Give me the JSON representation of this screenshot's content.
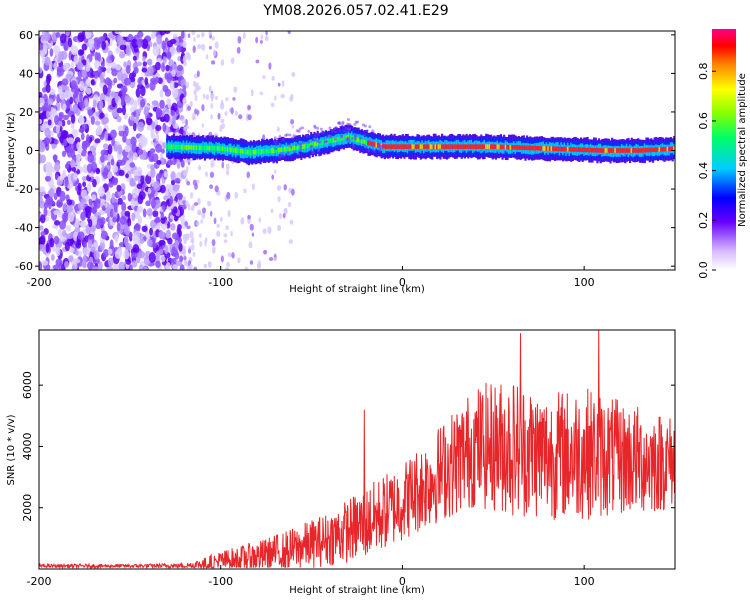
{
  "chart_data": [
    {
      "type": "heatmap",
      "title": "YM08.2026.057.02.41.E29",
      "xlabel": "Height of straight line (km)",
      "ylabel": "Frequency (Hz)",
      "xlim": [
        -200,
        150
      ],
      "ylim": [
        -62,
        62
      ],
      "xticks": [
        -200,
        -100,
        0,
        100
      ],
      "yticks": [
        -60,
        -40,
        -20,
        0,
        20,
        40,
        60
      ],
      "colorbar": {
        "label": "Normalized spectral amplitude",
        "range": [
          0.0,
          0.97
        ],
        "ticks": [
          0.0,
          0.2,
          0.4,
          0.6,
          0.8
        ]
      },
      "noise_region_x": [
        -200,
        -120
      ],
      "signal_band": {
        "x_start": -130,
        "x_end": 150,
        "center_frequency_hz": [
          [
            -130,
            2
          ],
          [
            -100,
            1
          ],
          [
            -85,
            -1
          ],
          [
            -70,
            0
          ],
          [
            -55,
            2
          ],
          [
            -40,
            5
          ],
          [
            -30,
            7
          ],
          [
            -20,
            4
          ],
          [
            -10,
            2
          ],
          [
            0,
            2
          ],
          [
            20,
            2
          ],
          [
            50,
            2
          ],
          [
            80,
            1
          ],
          [
            110,
            0
          ],
          [
            130,
            0
          ],
          [
            150,
            1
          ]
        ],
        "peak_amplitude_from_x": -20
      }
    },
    {
      "type": "line",
      "xlabel": "Height of straight line (km)",
      "ylabel": "SNR (10 * v/v)",
      "xlim": [
        -200,
        150
      ],
      "ylim": [
        0,
        7800
      ],
      "xticks": [
        -200,
        -100,
        0,
        100
      ],
      "yticks": [
        2000,
        4000,
        6000
      ],
      "series": [
        {
          "name": "SNR",
          "color": "#e8262a",
          "envelope": {
            "x": [
              -200,
              -150,
              -120,
              -110,
              -100,
              -80,
              -60,
              -40,
              -20,
              0,
              20,
              40,
              60,
              80,
              100,
              120,
              140,
              150
            ],
            "base": [
              100,
              100,
              110,
              150,
              250,
              400,
              650,
              1000,
              1500,
              2200,
              3100,
              4000,
              4000,
              3700,
              3800,
              3600,
              3500,
              3500
            ],
            "amplitude": [
              60,
              60,
              80,
              200,
              350,
              500,
              700,
              900,
              1200,
              1300,
              1600,
              2000,
              2300,
              2100,
              2200,
              1900,
              1700,
              1500
            ]
          },
          "notable_peaks": [
            {
              "x": -21,
              "y": 5200
            },
            {
              "x": 65,
              "y": 7700
            },
            {
              "x": 108,
              "y": 7800
            }
          ]
        }
      ]
    }
  ]
}
